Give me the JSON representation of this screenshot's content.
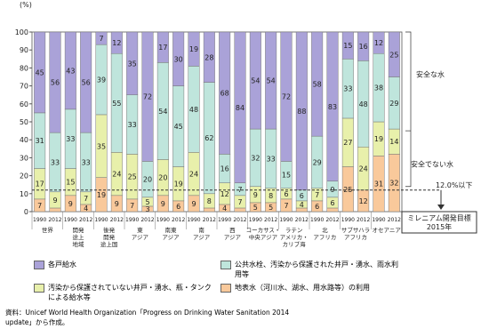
{
  "chart_data": {
    "type": "stacked_bar",
    "y_label": "(%)",
    "years": [
      "1990",
      "2012"
    ],
    "groups": [
      [
        "世界"
      ],
      [
        "開発",
        "途上",
        "地域"
      ],
      [
        "後発",
        "開発",
        "途上国"
      ],
      [
        "東",
        "アジア"
      ],
      [
        "南東",
        "アジア"
      ],
      [
        "南",
        "アジア"
      ],
      [
        "西",
        "アジア"
      ],
      [
        "コーカサス・",
        "中央アジア"
      ],
      [
        "ラテン",
        "アメリカ・",
        "カリブ海"
      ],
      [
        "北",
        "アフリカ"
      ],
      [
        "サブサハラ",
        "アフリカ"
      ],
      [
        "オセアニア"
      ]
    ],
    "series": [
      {
        "name": "地表水（河川水、湖水、用水路等）の利用",
        "color": "#f9c99b",
        "values": [
          7,
          2,
          9,
          4,
          19,
          9,
          7,
          3,
          9,
          6,
          9,
          2,
          4,
          2,
          5,
          5,
          7,
          2,
          6,
          2,
          25,
          12,
          31,
          32
        ]
      },
      {
        "name": "汚染から保護されていない井戸・湧水、瓶・タンクによる給水等",
        "color": "#e8f0ab",
        "values": [
          17,
          9,
          15,
          7,
          35,
          24,
          25,
          5,
          20,
          19,
          24,
          8,
          12,
          7,
          9,
          8,
          6,
          4,
          7,
          6,
          27,
          24,
          19,
          14
        ]
      },
      {
        "name": "公共水栓、汚染から保護された井戸・湧水、雨水利用等",
        "color": "#bfe5dc",
        "values": [
          31,
          33,
          33,
          33,
          39,
          55,
          33,
          20,
          54,
          45,
          48,
          62,
          16,
          7,
          32,
          33,
          15,
          6,
          29,
          9,
          33,
          48,
          38,
          29
        ]
      },
      {
        "name": "各戸給水",
        "color": "#aaa2d8",
        "values": [
          45,
          56,
          43,
          56,
          7,
          12,
          35,
          72,
          17,
          30,
          19,
          28,
          68,
          84,
          54,
          54,
          72,
          88,
          58,
          83,
          15,
          16,
          12,
          25
        ]
      }
    ],
    "ylim": [
      0,
      100
    ],
    "yticks": [
      0,
      10,
      20,
      30,
      40,
      50,
      60,
      70,
      80,
      90,
      100
    ],
    "annotations": {
      "safe": "安全な水",
      "unsafe": "安全でない水",
      "target_value": 12,
      "target_label": "12.0%以下",
      "goal": [
        "ミレニアム開発目標",
        "2015年"
      ]
    },
    "source": "資料：Unicef World Health Organization「Progress on Drinking Water Sanitation 2014 update」から作成。"
  }
}
